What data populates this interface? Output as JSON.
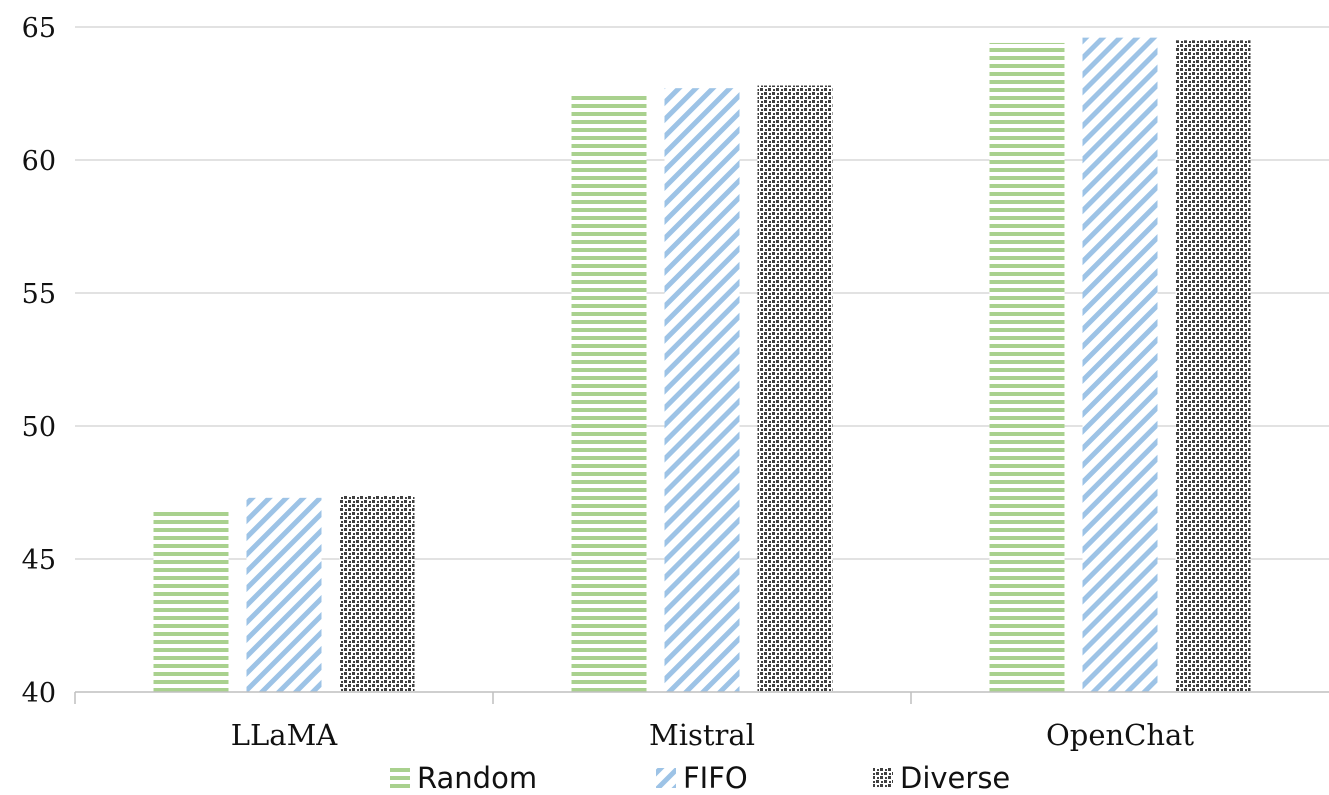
{
  "chart_data": {
    "type": "bar",
    "categories": [
      "LLaMA",
      "Mistral",
      "OpenChat"
    ],
    "series": [
      {
        "name": "Random",
        "values": [
          46.9,
          62.5,
          64.4
        ],
        "color": "#a9d18e",
        "pattern": "horizontal-stripes"
      },
      {
        "name": "FIFO",
        "values": [
          47.3,
          62.7,
          64.6
        ],
        "color": "#9dc3e6",
        "pattern": "diagonal-stripes"
      },
      {
        "name": "Diverse",
        "values": [
          47.4,
          62.8,
          64.5
        ],
        "color": "#404040",
        "pattern": "dots"
      }
    ],
    "yticks": [
      "40",
      "45",
      "50",
      "55",
      "60",
      "65"
    ],
    "ylim": [
      40,
      65
    ],
    "title": "",
    "xlabel": "",
    "ylabel": "",
    "grid": true,
    "legend_position": "bottom"
  }
}
